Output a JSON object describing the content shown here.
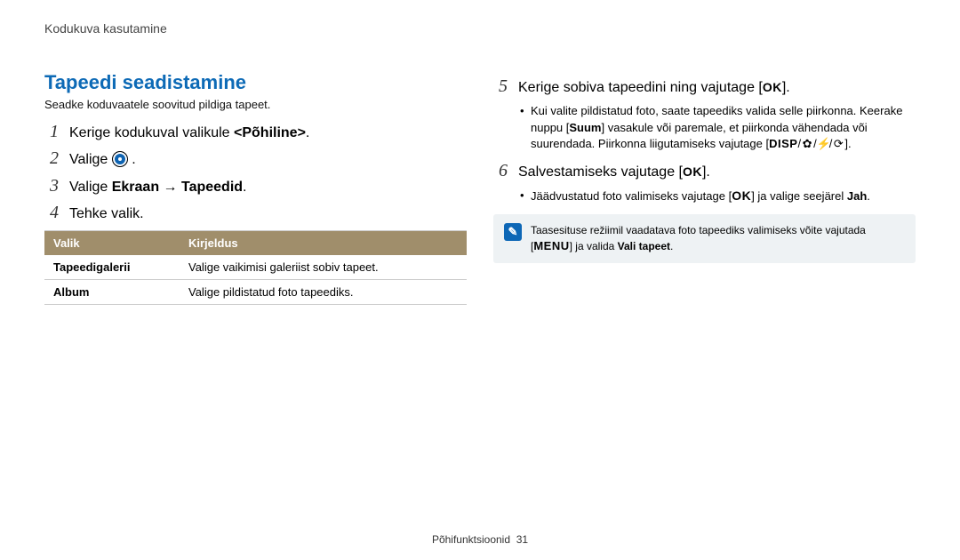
{
  "breadcrumb": "Kodukuva kasutamine",
  "section_title": "Tapeedi seadistamine",
  "section_sub": "Seadke koduvaatele soovitud pildiga tapeet.",
  "steps_left": {
    "s1": {
      "num": "1",
      "pre": "Kerige kodukuval valikule ",
      "bold": "<Põhiline>",
      "post": "."
    },
    "s2": {
      "num": "2",
      "pre": "Valige ",
      "post": " ."
    },
    "s3": {
      "num": "3",
      "pre": "Valige ",
      "bold": "Ekraan → Tapeedid",
      "post": "."
    },
    "s4": {
      "num": "4",
      "text": "Tehke valik."
    }
  },
  "table": {
    "header_left": "Valik",
    "header_right": "Kirjeldus",
    "rows": [
      {
        "left": "Tapeedigalerii",
        "right": "Valige vaikimisi galeriist sobiv tapeet."
      },
      {
        "left": "Album",
        "right": "Valige pildistatud foto tapeediks."
      }
    ]
  },
  "steps_right": {
    "s5": {
      "num": "5",
      "pre": "Kerige sobiva tapeedini ning vajutage [",
      "ok": "OK",
      "post": "]."
    },
    "s5_bullet_a": "Kui valite pildistatud foto, saate tapeediks valida selle piirkonna. Keerake nuppu [",
    "s5_bullet_b": "] vasakule või paremale, et piirkonda vähendada või suurendada. Piirkonna liigutamiseks vajutage [",
    "s5_bullet_zoom": "Suum",
    "s5_bullet_disp": "DISP",
    "s5_bullet_end": "].",
    "s6": {
      "num": "6",
      "pre": "Salvestamiseks vajutage [",
      "ok": "OK",
      "post": "]."
    },
    "s6_bullet_a": "Jäädvustatud foto valimiseks vajutage [",
    "s6_bullet_b": "] ja valige seejärel ",
    "s6_bullet_ok": "OK",
    "s6_bullet_jah": "Jah",
    "s6_bullet_end": "."
  },
  "note": {
    "pre": "Taasesituse režiimil vaadatava foto tapeediks valimiseks võite vajutada [",
    "menu": "MENU",
    "mid": "] ja valida ",
    "bold": "Vali tapeet",
    "end": "."
  },
  "footer_label": "Põhifunktsioonid",
  "footer_page": "31",
  "colors": {
    "title": "#0d6ab6",
    "table_header_bg": "#a08e6b",
    "note_bg": "#eef2f4",
    "note_icon_bg": "#0d67b6"
  },
  "icons": {
    "flower": "✿",
    "bolt": "⚡",
    "timer": "⟳"
  }
}
